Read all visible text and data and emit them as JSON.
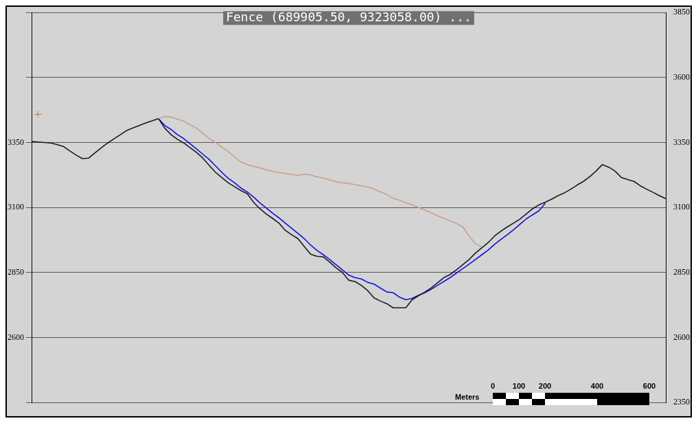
{
  "chart_data": {
    "type": "line",
    "title": "Fence (689905.50, 9323058.00) ...",
    "categories": [
      null,
      null,
      null,
      null,
      null,
      null,
      null,
      null,
      null,
      null,
      null,
      null,
      null,
      null,
      null,
      null,
      null,
      null,
      null,
      null,
      null,
      null,
      null,
      null,
      null,
      null,
      null,
      null,
      null,
      null,
      null,
      null,
      null,
      null,
      null,
      null,
      null,
      null,
      null,
      null,
      null,
      null,
      null,
      null,
      null,
      null,
      null,
      null,
      null,
      null,
      null,
      null,
      null,
      null,
      null,
      null,
      null,
      null,
      null,
      null,
      null,
      null,
      null,
      null,
      null,
      null,
      null,
      null,
      null,
      null,
      null,
      null,
      null,
      null,
      null,
      null,
      null,
      null,
      null,
      null,
      null,
      null,
      null,
      null,
      null,
      null,
      null,
      null,
      null,
      null,
      null,
      null,
      null,
      null,
      null,
      null,
      null,
      null,
      null,
      null,
      null
    ],
    "series": [
      {
        "color": "#c8a08c",
        "values": [
          null,
          null,
          null,
          null,
          null,
          null,
          null,
          null,
          null,
          null,
          null,
          null,
          null,
          null,
          null,
          null,
          null,
          null,
          null,
          null,
          3442,
          3450,
          3448,
          3440,
          3432,
          3418,
          3405,
          3385,
          3365,
          3350,
          3332,
          3315,
          3295,
          3275,
          3265,
          3258,
          3252,
          3245,
          3239,
          3235,
          3231,
          3227,
          3223,
          3228,
          3225,
          3218,
          3213,
          3206,
          3199,
          3195,
          3192,
          3188,
          3183,
          3179,
          3170,
          3160,
          3150,
          3135,
          3128,
          3118,
          3110,
          3100,
          3090,
          3080,
          3068,
          3058,
          3048,
          3038,
          3025,
          2990,
          2960,
          2948,
          null,
          null,
          null,
          null,
          null,
          null,
          null,
          null,
          null,
          null,
          null,
          null,
          null,
          null,
          null,
          null,
          null,
          null,
          null,
          null,
          null,
          null,
          null,
          null,
          null,
          null,
          null,
          null,
          null
        ]
      },
      {
        "color": "#1a1a1a",
        "values": [
          3354,
          3352,
          3350,
          3348,
          3342,
          3335,
          3318,
          3302,
          3288,
          3290,
          3310,
          3330,
          3348,
          3364,
          3380,
          3396,
          3406,
          3415,
          3425,
          3433,
          3442,
          3405,
          3380,
          3362,
          3348,
          3330,
          3312,
          3290,
          3262,
          3235,
          3215,
          3195,
          3180,
          3165,
          3153,
          3120,
          3095,
          3075,
          3058,
          3040,
          3012,
          2995,
          2980,
          2950,
          2920,
          2912,
          2910,
          2890,
          2868,
          2850,
          2820,
          2815,
          2800,
          2780,
          2752,
          2740,
          2730,
          2714,
          2714,
          2714,
          2745,
          2760,
          2774,
          2790,
          2810,
          2830,
          2842,
          2860,
          2880,
          2900,
          2925,
          2945,
          2965,
          2990,
          3009,
          3025,
          3040,
          3055,
          3075,
          3095,
          3110,
          3120,
          3132,
          3145,
          3156,
          3170,
          3186,
          3200,
          3218,
          3240,
          3265,
          3255,
          3240,
          3215,
          3207,
          3200,
          3183,
          3170,
          3158,
          3145,
          3134
        ]
      },
      {
        "color": "#1010e0",
        "values": [
          null,
          null,
          null,
          null,
          null,
          null,
          null,
          null,
          null,
          null,
          null,
          null,
          null,
          null,
          null,
          null,
          null,
          null,
          null,
          null,
          3442,
          3415,
          3400,
          3380,
          3365,
          3345,
          3325,
          3305,
          3285,
          3260,
          3235,
          3212,
          3195,
          3175,
          3160,
          3140,
          3118,
          3098,
          3078,
          3060,
          3040,
          3020,
          3000,
          2980,
          2955,
          2935,
          2918,
          2900,
          2880,
          2860,
          2840,
          2830,
          2825,
          2812,
          2805,
          2790,
          2775,
          2772,
          2755,
          2745,
          2750,
          2762,
          2772,
          2785,
          2800,
          2815,
          2830,
          2848,
          2865,
          2882,
          2900,
          2918,
          2936,
          2958,
          2977,
          2995,
          3014,
          3035,
          3056,
          3072,
          3087,
          3116,
          null,
          null,
          null,
          null,
          null,
          null,
          null,
          null,
          null,
          null,
          null,
          null,
          null,
          null,
          null,
          null,
          null,
          null,
          null
        ]
      },
      {
        "type": "scatter",
        "marker": "cross",
        "color": "#d07040",
        "values": [
          null,
          3458,
          null,
          null,
          null,
          null,
          null,
          null,
          null,
          null,
          null,
          null,
          null,
          null,
          null,
          null,
          null,
          null,
          null,
          null,
          null,
          null,
          null,
          null,
          null,
          null,
          null,
          null,
          null,
          null,
          null,
          null,
          null,
          null,
          null,
          null,
          null,
          null,
          null,
          null,
          null,
          null,
          null,
          null,
          null,
          null,
          null,
          null,
          null,
          null,
          null,
          null,
          null,
          null,
          null,
          null,
          null,
          null,
          null,
          null,
          null,
          null,
          null,
          null,
          null,
          null,
          null,
          null,
          null,
          null,
          null,
          null,
          null,
          null,
          null,
          null,
          null,
          null,
          null,
          null,
          null,
          null,
          null,
          null,
          null,
          null,
          null,
          null,
          null,
          null,
          null,
          null,
          null,
          null,
          null,
          null,
          null,
          null,
          null,
          null,
          null
        ]
      }
    ],
    "ylim": [
      2350,
      3850
    ],
    "yticks": [
      {
        "value": 2350,
        "label": null
      },
      2600,
      2850,
      3100,
      3350,
      {
        "value": 3600,
        "label": null
      },
      {
        "value": 3850,
        "label": null
      }
    ],
    "y2lim": [
      2350,
      3850
    ],
    "y2ticks": [
      2350,
      2600,
      2850,
      3100,
      3350,
      3600,
      3850
    ],
    "grid": "y",
    "tick_labels": "y",
    "marker": "none",
    "line_style": "solid",
    "legend": false,
    "annotations": [
      "Meters",
      "0",
      "100",
      "200",
      "400",
      "600"
    ]
  }
}
